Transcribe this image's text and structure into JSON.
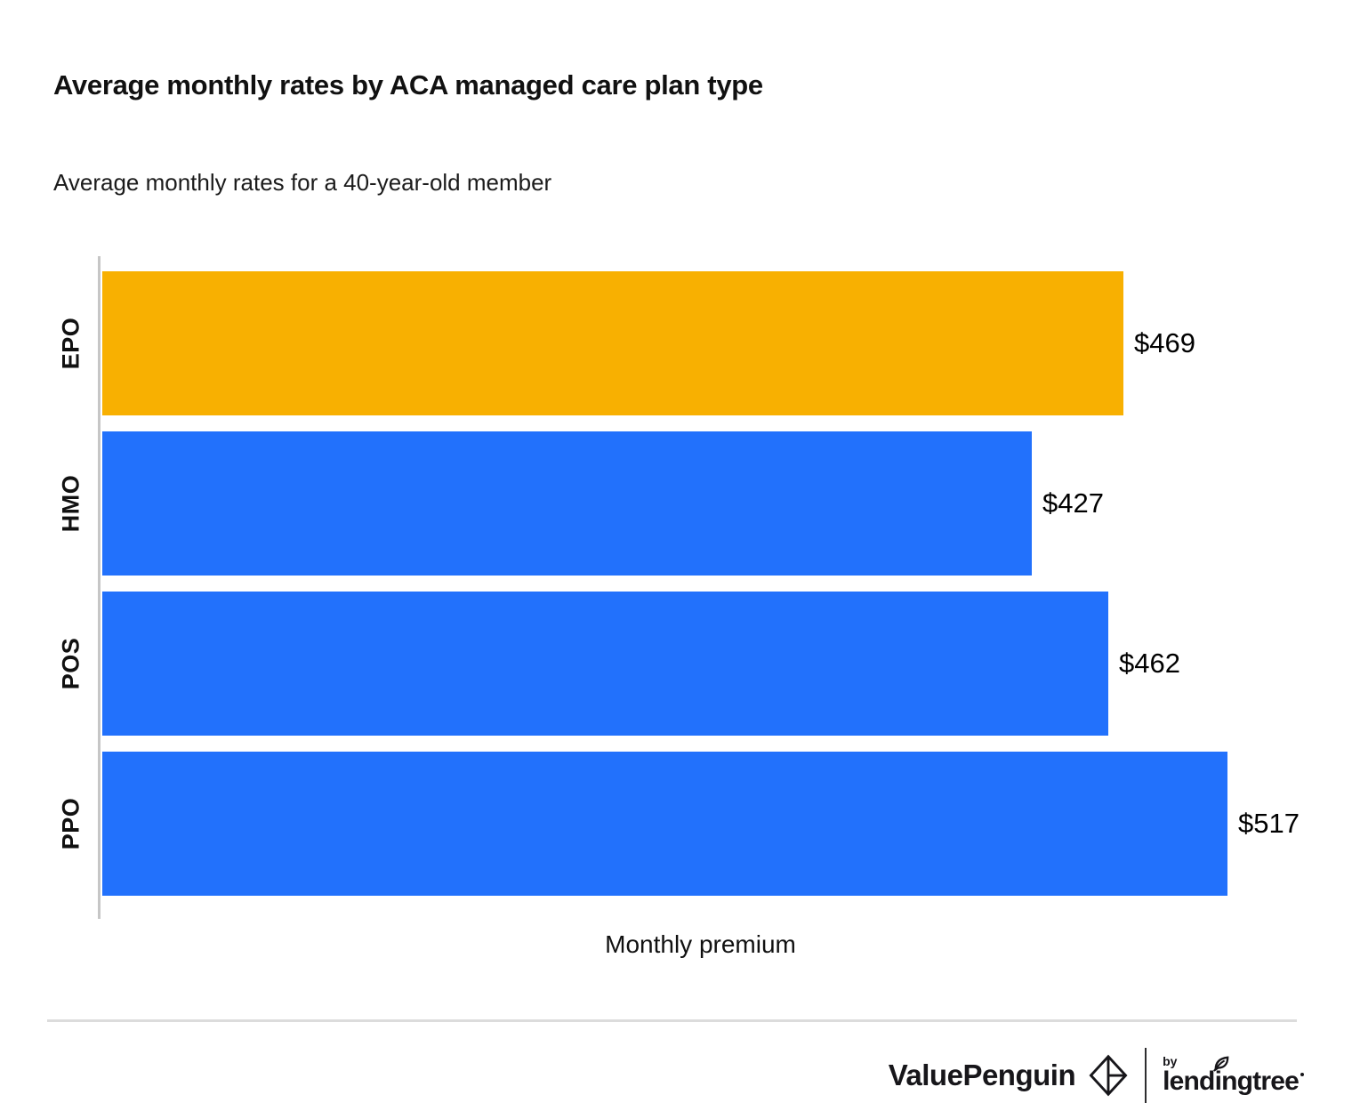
{
  "chart_data": {
    "type": "bar",
    "orientation": "horizontal",
    "title": "Average monthly rates by ACA managed care plan type",
    "subtitle": "Average monthly rates for a 40-year-old member",
    "categories": [
      "EPO",
      "HMO",
      "POS",
      "PPO"
    ],
    "values": [
      469,
      427,
      462,
      517
    ],
    "value_labels": [
      "$469",
      "$427",
      "$462",
      "$517"
    ],
    "xlabel": "Monthly premium",
    "ylabel": "",
    "xlim": [
      0,
      550
    ],
    "grid": false,
    "legend": "none",
    "bar_colors": [
      "#F8B001",
      "#2271FC",
      "#2271FC",
      "#2271FC"
    ],
    "highlight_color": "#F8B001",
    "default_color": "#2271FC"
  },
  "colors": {
    "axis_line": "#c6c6c6",
    "divider": "#dcdcdc",
    "text": "#111111",
    "brand_dark": "#17161a"
  },
  "footer": {
    "brand": "ValuePenguin",
    "by": "by",
    "lendingtree": "lendingtree"
  }
}
